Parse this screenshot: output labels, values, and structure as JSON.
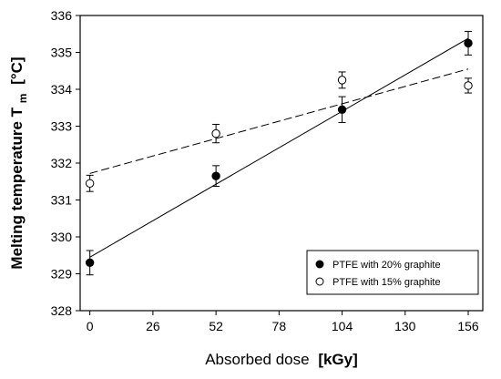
{
  "chart_data": {
    "type": "scatter",
    "xlabel": "Absorbed dose",
    "xunit": "[kGy]",
    "ylabel_main": "Melting temperature T",
    "ylabel_sub": "m",
    "yunit": "[°C]",
    "xlim": [
      -4,
      162
    ],
    "ylim": [
      328,
      336
    ],
    "xticks": [
      0,
      26,
      52,
      78,
      104,
      130,
      156
    ],
    "yticks": [
      328,
      329,
      330,
      331,
      332,
      333,
      334,
      335,
      336
    ],
    "grid": false,
    "legend_position": "bottom-right",
    "series": [
      {
        "name": "PTFE with 20% graphite",
        "marker": "filled-circle",
        "fit_line": "solid",
        "x": [
          0,
          52,
          104,
          156
        ],
        "y": [
          329.3,
          331.65,
          333.45,
          335.25
        ],
        "err": [
          0.33,
          0.28,
          0.35,
          0.32
        ],
        "fit": {
          "y_at_0": 329.45,
          "y_at_156": 335.38
        }
      },
      {
        "name": "PTFE with 15% graphite",
        "marker": "open-circle",
        "fit_line": "dashed",
        "x": [
          0,
          52,
          104,
          156
        ],
        "y": [
          331.45,
          332.8,
          334.25,
          334.1
        ],
        "err": [
          0.22,
          0.25,
          0.22,
          0.2
        ],
        "fit": {
          "y_at_0": 331.72,
          "y_at_156": 334.55
        }
      }
    ]
  }
}
